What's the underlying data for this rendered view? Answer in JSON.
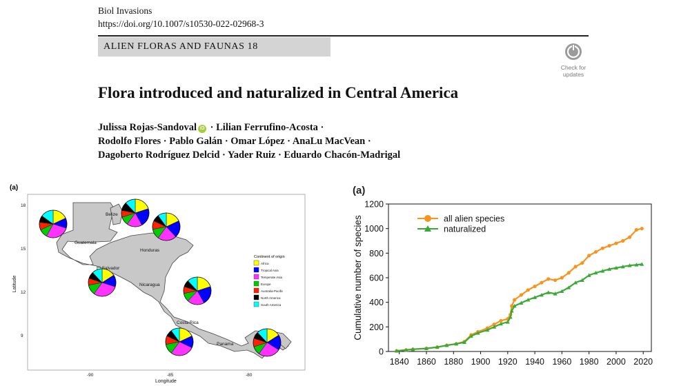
{
  "header": {
    "journal": "Biol Invasions",
    "doi": "https://doi.org/10.1007/s10530-022-02968-3",
    "series": "ALIEN FLORAS AND FAUNAS 18",
    "check_updates": [
      "Check for",
      "updates"
    ]
  },
  "title": "Flora introduced and naturalized in Central America",
  "authors": {
    "line1_a": "Julissa Rojas-Sandoval",
    "orcid": "iD",
    "line1_b": " · Lilian Ferrufino-Acosta ·",
    "line2": "Rodolfo Flores · Pablo Galán · Omar López · AnaLu MacVean ·",
    "line3": "Dagoberto Rodríguez Delcid · Yader Ruiz · Eduardo Chacón-Madrigal"
  },
  "map": {
    "panel_label": "(a)",
    "xlabel": "Longitude",
    "ylabel": "Latitude",
    "x_ticks": [
      "-90",
      "-85",
      "-80"
    ],
    "y_ticks": [
      "18",
      "15",
      "12",
      "9"
    ],
    "countries": [
      "Belize",
      "Guatemala",
      "Honduras",
      "El Salvador",
      "Nicaragua",
      "Costa Rica",
      "Panama"
    ],
    "legend_title": "Continent of origin",
    "legend": [
      {
        "label": "Africa",
        "color": "#ffff00"
      },
      {
        "label": "Tropical Asia",
        "color": "#0000ff"
      },
      {
        "label": "Temperate Asia",
        "color": "#ff33ff"
      },
      {
        "label": "Europe",
        "color": "#00cc00"
      },
      {
        "label": "Australia-Pacific",
        "color": "#ff2200"
      },
      {
        "label": "North America",
        "color": "#000000"
      },
      {
        "label": "South America",
        "color": "#00ffff"
      }
    ],
    "pies": [
      {
        "country": "Guatemala",
        "values": [
          18,
          12,
          28,
          10,
          9,
          8,
          15
        ]
      },
      {
        "country": "Belize",
        "values": [
          20,
          22,
          18,
          10,
          8,
          10,
          12
        ]
      },
      {
        "country": "Honduras",
        "values": [
          18,
          20,
          22,
          12,
          10,
          8,
          10
        ]
      },
      {
        "country": "El Salvador",
        "values": [
          16,
          14,
          30,
          12,
          8,
          8,
          12
        ]
      },
      {
        "country": "Nicaragua",
        "values": [
          20,
          22,
          20,
          10,
          8,
          8,
          12
        ]
      },
      {
        "country": "Costa Rica",
        "values": [
          18,
          14,
          28,
          12,
          10,
          8,
          10
        ]
      },
      {
        "country": "Panama",
        "values": [
          16,
          18,
          26,
          10,
          10,
          8,
          12
        ]
      }
    ]
  },
  "chart_data": {
    "type": "line",
    "panel_label": "(a)",
    "xlabel": "",
    "ylabel": "Cumulative number of species",
    "xlim": [
      1832,
      2026
    ],
    "ylim": [
      0,
      1200
    ],
    "x_ticks": [
      1840,
      1860,
      1880,
      1900,
      1920,
      1940,
      1960,
      1980,
      2000,
      2020
    ],
    "y_ticks": [
      0,
      200,
      400,
      600,
      800,
      1000,
      1200
    ],
    "legend_position": "top-left",
    "series": [
      {
        "name": "all alien species",
        "color": "#f7941d",
        "marker": "circle",
        "x": [
          1838,
          1845,
          1850,
          1860,
          1868,
          1875,
          1882,
          1888,
          1893,
          1898,
          1905,
          1910,
          1915,
          1920,
          1922,
          1923,
          1925,
          1930,
          1935,
          1940,
          1945,
          1950,
          1955,
          1960,
          1965,
          1970,
          1975,
          1980,
          1985,
          1990,
          1995,
          2000,
          2005,
          2010,
          2015,
          2019
        ],
        "values": [
          5,
          12,
          18,
          25,
          35,
          50,
          62,
          80,
          135,
          160,
          190,
          220,
          250,
          265,
          300,
          370,
          420,
          460,
          500,
          530,
          560,
          590,
          580,
          600,
          640,
          690,
          720,
          780,
          810,
          840,
          860,
          880,
          900,
          930,
          990,
          1000
        ]
      },
      {
        "name": "naturalized",
        "color": "#3aa935",
        "marker": "triangle",
        "x": [
          1838,
          1845,
          1850,
          1860,
          1868,
          1875,
          1882,
          1888,
          1893,
          1898,
          1905,
          1910,
          1915,
          1920,
          1922,
          1923,
          1925,
          1930,
          1935,
          1940,
          1945,
          1950,
          1955,
          1960,
          1965,
          1970,
          1975,
          1980,
          1985,
          1990,
          1995,
          2000,
          2005,
          2010,
          2015,
          2019
        ],
        "values": [
          5,
          12,
          18,
          25,
          35,
          50,
          62,
          75,
          125,
          150,
          175,
          200,
          225,
          240,
          280,
          330,
          370,
          395,
          420,
          440,
          460,
          480,
          470,
          490,
          520,
          560,
          580,
          620,
          640,
          655,
          670,
          680,
          690,
          700,
          705,
          710
        ]
      }
    ]
  }
}
